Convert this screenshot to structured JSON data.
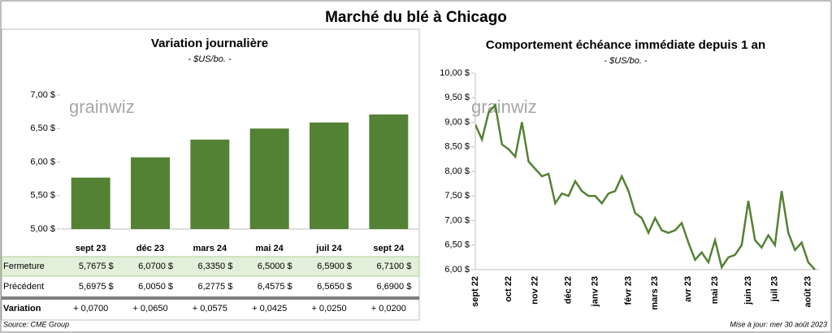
{
  "title": "Marché du blé à Chicago",
  "watermark": "grainwiz",
  "source": "Source: CME Group",
  "updated": "Mise à jour: mer 30 août 2023",
  "chart_data": [
    {
      "type": "bar",
      "title": "Variation journalière",
      "subtitle": "- $US/bo. -",
      "categories": [
        "sept 23",
        "déc 23",
        "mars 24",
        "mai 24",
        "juil 24",
        "sept 24"
      ],
      "series": [
        {
          "name": "Fermeture",
          "color": "#548235",
          "values": [
            5.7675,
            6.07,
            6.335,
            6.5,
            6.59,
            6.71
          ],
          "value_labels": [
            "5,7675  $",
            "6,0700  $",
            "6,3350  $",
            "6,5000  $",
            "6,5900  $",
            "6,7100  $"
          ]
        }
      ],
      "ylim": [
        5,
        7
      ],
      "yticks": [
        {
          "value": 5,
          "label": "5,00 $"
        },
        {
          "value": 5.5,
          "label": "5,50 $"
        },
        {
          "value": 6,
          "label": "6,00 $"
        },
        {
          "value": 6.5,
          "label": "6,50 $"
        },
        {
          "value": 7,
          "label": "7,00 $"
        }
      ]
    },
    {
      "type": "line",
      "title": "Comportement  échéance immédiate depuis 1 an",
      "subtitle": "- $US/bo. -",
      "categories": [
        "sept 22",
        null,
        null,
        null,
        null,
        "oct 22",
        null,
        null,
        null,
        "nov 22",
        null,
        null,
        null,
        null,
        "déc 22",
        null,
        null,
        null,
        "janv 23",
        null,
        null,
        null,
        null,
        "févr 23",
        null,
        null,
        null,
        "mars 23",
        null,
        null,
        null,
        null,
        "avr 23",
        null,
        null,
        null,
        "mai 23",
        null,
        null,
        null,
        null,
        "juin 23",
        null,
        null,
        null,
        "juil 23",
        null,
        null,
        null,
        null,
        "août 23",
        null
      ],
      "series": [
        {
          "name": "Échéance immédiate",
          "color": "#548235",
          "values": [
            8.95,
            8.65,
            9.2,
            9.35,
            8.55,
            8.45,
            8.3,
            9.0,
            8.2,
            8.05,
            7.9,
            7.95,
            7.35,
            7.55,
            7.5,
            7.8,
            7.6,
            7.5,
            7.5,
            7.35,
            7.55,
            7.6,
            7.9,
            7.6,
            7.15,
            7.05,
            6.75,
            7.05,
            6.8,
            6.75,
            6.8,
            6.95,
            6.55,
            6.2,
            6.35,
            6.15,
            6.6,
            6.05,
            6.25,
            6.3,
            6.5,
            7.4,
            6.6,
            6.45,
            6.7,
            6.5,
            7.6,
            6.75,
            6.4,
            6.55,
            6.15,
            6.0
          ]
        }
      ],
      "ylim": [
        6,
        10
      ],
      "yticks": [
        {
          "value": 6,
          "label": "6,00 $"
        },
        {
          "value": 6.5,
          "label": "6,50 $"
        },
        {
          "value": 7,
          "label": "7,00 $"
        },
        {
          "value": 7.5,
          "label": "7,50 $"
        },
        {
          "value": 8,
          "label": "8,00 $"
        },
        {
          "value": 8.5,
          "label": "8,50 $"
        },
        {
          "value": 9,
          "label": "9,00 $"
        },
        {
          "value": 9.5,
          "label": "9,50 $"
        },
        {
          "value": 10,
          "label": "10,00 $"
        }
      ]
    }
  ],
  "table": {
    "rows": [
      {
        "label": "Précédent",
        "cells": [
          "5,6975  $",
          "6,0050  $",
          "6,2775  $",
          "6,4575  $",
          "6,5650  $",
          "6,6900  $"
        ]
      },
      {
        "label": "Variation",
        "cells": [
          "+ 0,0700",
          "+ 0,0650",
          "+ 0,0575",
          "+ 0,0425",
          "+ 0,0250",
          "+ 0,0200"
        ]
      }
    ]
  }
}
